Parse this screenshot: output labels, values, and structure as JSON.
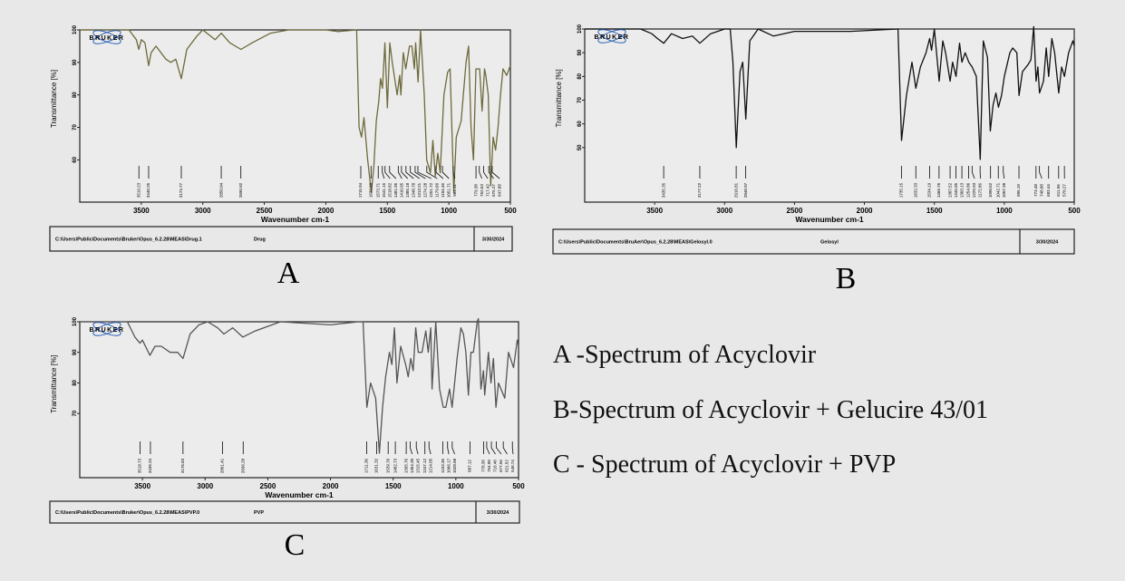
{
  "logo": "BRUKER",
  "legend": [
    "A -Spectrum  of Acyclovir",
    "B-Spectrum  of Acyclovir  + Gelucire  43/01",
    "C - Spectrum of Acyclovir + PVP"
  ],
  "chart_data": [
    {
      "type": "line",
      "panel_label": "A",
      "xlabel": "Wavenumber cm-1",
      "ylabel": "Transmittance [%]",
      "xlim": [
        4000,
        500
      ],
      "ylim": [
        47,
        100
      ],
      "xticks": [
        3500,
        3000,
        2500,
        2000,
        1500,
        1000,
        500
      ],
      "yticks": [
        100,
        90,
        80,
        70,
        60
      ],
      "line_color": "#6e6a3c",
      "footer": {
        "path": "C:\\Users\\Public\\Documents\\Bruker\\Opus_6.2.28\\MEAS\\Drug.1",
        "sample": "Drug",
        "date": "3/30/2024"
      },
      "peaks": [
        "3519.23",
        "3440.25",
        "3174.77",
        "2850.04",
        "2690.92",
        "1715.94",
        "1632.29",
        "1573.71",
        "1541.15",
        "1518.82",
        "1481.95",
        "1410.95",
        "1385.18",
        "1348.78",
        "1313.21",
        "1274.28",
        "1251.72",
        "1179.68",
        "1104.46",
        "1051.71",
        "964.11",
        "779.38",
        "752.53",
        "717.42",
        "675.27",
        "647.88"
      ],
      "x": [
        4000,
        3600,
        3540,
        3520,
        3500,
        3470,
        3440,
        3420,
        3380,
        3300,
        3260,
        3220,
        3175,
        3130,
        3050,
        3000,
        2900,
        2850,
        2780,
        2690,
        2600,
        2450,
        2300,
        2000,
        1900,
        1750,
        1730,
        1710,
        1690,
        1660,
        1630,
        1610,
        1590,
        1570,
        1555,
        1540,
        1520,
        1500,
        1480,
        1460,
        1420,
        1400,
        1390,
        1370,
        1350,
        1320,
        1300,
        1280,
        1270,
        1250,
        1230,
        1200,
        1180,
        1150,
        1130,
        1110,
        1090,
        1070,
        1040,
        1010,
        990,
        960,
        940,
        900,
        860,
        840,
        820,
        800,
        780,
        750,
        730,
        710,
        700,
        680,
        660,
        640,
        620,
        600,
        580,
        560,
        530,
        500
      ],
      "y": [
        100,
        100,
        97,
        94,
        97,
        96,
        89,
        93,
        95,
        91,
        90,
        91,
        85,
        94,
        98,
        100,
        97,
        99,
        96,
        94,
        96,
        99,
        100,
        100,
        99.5,
        100,
        70,
        67,
        73,
        60,
        50,
        58,
        72,
        78,
        85,
        82,
        96,
        76,
        96,
        90,
        80,
        86,
        80,
        93,
        88,
        95,
        95,
        88,
        96,
        84,
        100,
        80,
        60,
        56,
        66,
        55,
        62,
        56,
        80,
        87,
        88,
        50,
        67,
        72,
        90,
        95,
        70,
        60,
        88,
        88,
        75,
        88,
        86,
        80,
        52,
        67,
        63,
        70,
        80,
        88,
        86,
        89
      ]
    },
    {
      "type": "line",
      "panel_label": "B",
      "xlabel": "Wavenumber cm-1",
      "ylabel": "Transmittance [%]",
      "xlim": [
        4000,
        500
      ],
      "ylim": [
        27,
        100
      ],
      "xticks": [
        3500,
        3000,
        2500,
        2000,
        1500,
        1000,
        500
      ],
      "yticks": [
        100,
        90,
        80,
        70,
        60,
        50
      ],
      "line_color": "#111111",
      "footer": {
        "path": "C:\\Users\\Public\\Documents\\BruAer\\Opus_6.2.28\\MEAS\\Gelosyl.0",
        "sample": "Gelosyl",
        "date": "3/30/2024"
      },
      "peaks": [
        "3435.35",
        "3177.22",
        "2916.81",
        "2848.97",
        "1735.15",
        "1632.33",
        "1534.19",
        "1466.76",
        "1387.52",
        "1345.85",
        "1303.13",
        "1254.86",
        "1229.93",
        "1172.86",
        "1098.62",
        "1042.71",
        "1007.38",
        "895.19",
        "773.48",
        "748.88",
        "683.44",
        "611.56",
        "570.27"
      ],
      "x": [
        4000,
        3600,
        3520,
        3480,
        3435,
        3380,
        3300,
        3230,
        3177,
        3100,
        3000,
        2960,
        2940,
        2916,
        2890,
        2870,
        2848,
        2820,
        2760,
        2650,
        2500,
        2100,
        1760,
        1735,
        1700,
        1660,
        1632,
        1600,
        1560,
        1534,
        1520,
        1500,
        1466,
        1440,
        1420,
        1387,
        1370,
        1345,
        1320,
        1303,
        1280,
        1254,
        1230,
        1200,
        1172,
        1150,
        1120,
        1100,
        1080,
        1060,
        1042,
        1020,
        1000,
        960,
        940,
        910,
        895,
        870,
        830,
        810,
        790,
        773,
        760,
        748,
        720,
        700,
        683,
        660,
        640,
        611,
        590,
        570,
        540,
        510,
        500
      ],
      "y": [
        100,
        100,
        98,
        96,
        94,
        98,
        96,
        97,
        94,
        98,
        100,
        100,
        86,
        50,
        82,
        86,
        62,
        95,
        100,
        97,
        99,
        99,
        100,
        53,
        72,
        86,
        75,
        84,
        90,
        96,
        91,
        100,
        78,
        95,
        90,
        78,
        86,
        80,
        94,
        86,
        90,
        86,
        84,
        80,
        45,
        95,
        88,
        57,
        68,
        73,
        67,
        72,
        80,
        90,
        92,
        90,
        72,
        82,
        85,
        87,
        101,
        78,
        84,
        73,
        78,
        92,
        80,
        96,
        90,
        73,
        84,
        80,
        90,
        95,
        93
      ]
    },
    {
      "type": "line",
      "panel_label": "C",
      "xlabel": "Wavenumber cm-1",
      "ylabel": "Transmittance [%]",
      "xlim": [
        4000,
        500
      ],
      "ylim": [
        49,
        100
      ],
      "xticks": [
        3500,
        3000,
        2500,
        2000,
        1500,
        1000,
        500
      ],
      "yticks": [
        100,
        90,
        80,
        70
      ],
      "line_color": "#555555",
      "footer": {
        "path": "C:\\Users\\Public\\Documents\\Bruker\\Opus_6.2.28\\MEAS\\PVP.0",
        "sample": "PVP",
        "date": "3/30/2024"
      },
      "peaks": [
        "3518.73",
        "3436.34",
        "3176.83",
        "2861.41",
        "2696.28",
        "1711.36",
        "1631.32",
        "1539.76",
        "1482.73",
        "1395.76",
        "1364.30",
        "1315.45",
        "1247.12",
        "1214.05",
        "1103.36",
        "1066.17",
        "1028.88",
        "887.12",
        "778.36",
        "754.00",
        "716.46",
        "677.56",
        "621.52",
        "548.74"
      ],
      "x": [
        4000,
        3620,
        3560,
        3520,
        3500,
        3440,
        3400,
        3350,
        3280,
        3220,
        3176,
        3120,
        3050,
        2980,
        2900,
        2850,
        2780,
        2700,
        2600,
        2400,
        2000,
        1780,
        1740,
        1710,
        1680,
        1640,
        1610,
        1585,
        1560,
        1530,
        1510,
        1490,
        1470,
        1440,
        1400,
        1380,
        1360,
        1340,
        1320,
        1300,
        1270,
        1240,
        1220,
        1200,
        1190,
        1160,
        1130,
        1100,
        1080,
        1050,
        1030,
        1010,
        990,
        960,
        940,
        920,
        900,
        880,
        860,
        830,
        820,
        800,
        780,
        770,
        740,
        720,
        700,
        680,
        660,
        640,
        610,
        580,
        540,
        510,
        500
      ],
      "y": [
        100,
        100,
        95,
        93,
        94,
        89,
        92,
        92,
        90,
        90,
        88,
        96,
        99,
        100,
        98,
        96,
        98,
        95,
        97,
        100,
        99,
        100,
        100,
        72,
        80,
        75,
        57,
        72,
        82,
        90,
        86,
        98,
        80,
        92,
        86,
        82,
        88,
        84,
        98,
        90,
        90,
        97,
        90,
        98,
        78,
        100,
        78,
        72,
        72,
        78,
        72,
        80,
        88,
        98,
        96,
        90,
        76,
        90,
        90,
        100,
        101,
        78,
        84,
        76,
        90,
        80,
        88,
        72,
        80,
        78,
        75,
        90,
        85,
        94,
        92
      ]
    }
  ]
}
